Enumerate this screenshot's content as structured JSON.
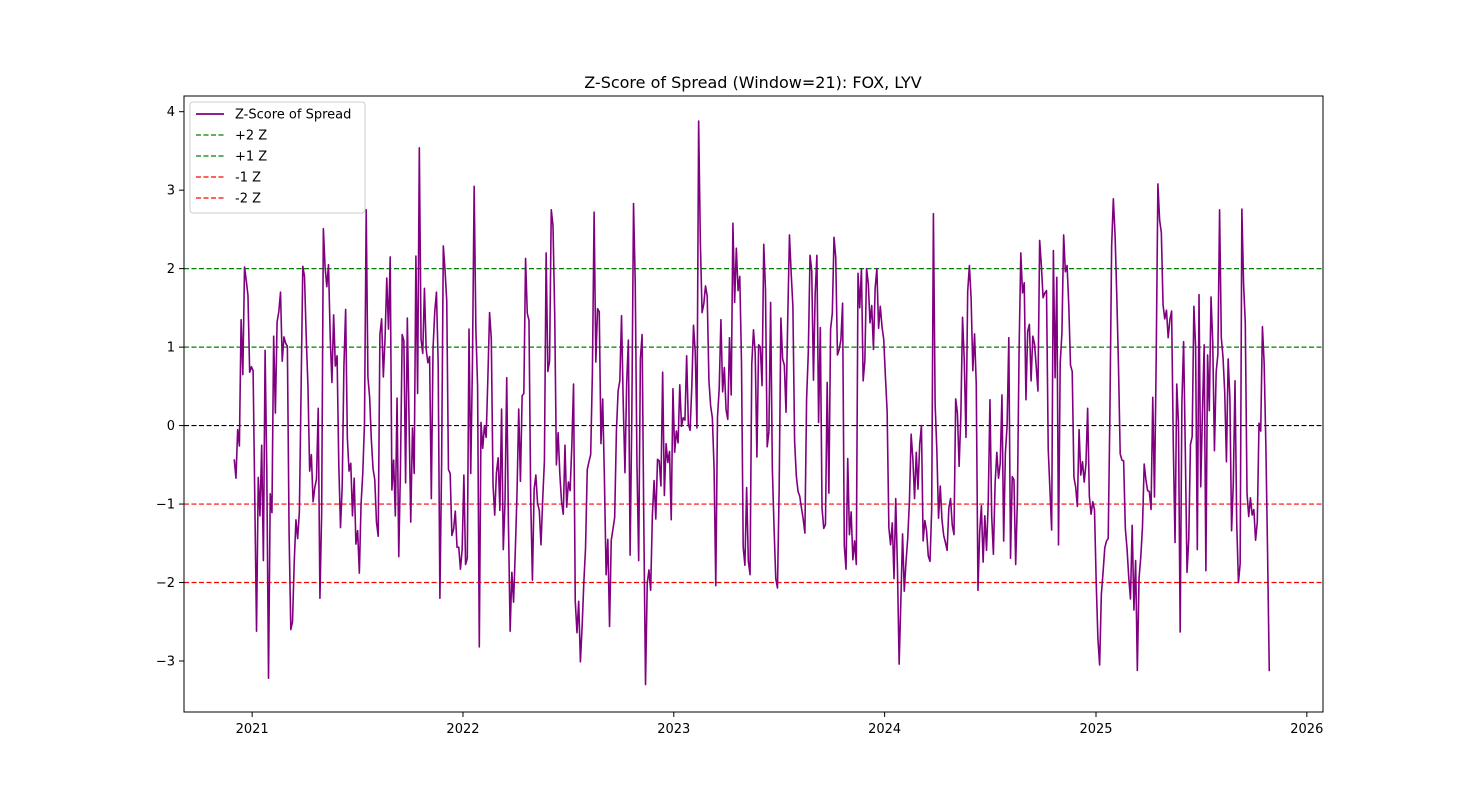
{
  "chart_data": {
    "type": "line",
    "title": "Z-Score of Spread (Window=21): FOX, LYV",
    "xlabel": "",
    "ylabel": "",
    "xlim": [
      "2020-09-05",
      "2026-01-29"
    ],
    "ylim": [
      -3.65,
      4.2
    ],
    "x_ticks": [
      {
        "date": "2021-01-01",
        "label": "2021"
      },
      {
        "date": "2022-01-01",
        "label": "2022"
      },
      {
        "date": "2023-01-01",
        "label": "2023"
      },
      {
        "date": "2024-01-01",
        "label": "2024"
      },
      {
        "date": "2025-01-01",
        "label": "2025"
      },
      {
        "date": "2026-01-01",
        "label": "2026"
      }
    ],
    "y_ticks": [
      {
        "value": 4,
        "label": "4"
      },
      {
        "value": 3,
        "label": "3"
      },
      {
        "value": 2,
        "label": "2"
      },
      {
        "value": 1,
        "label": "1"
      },
      {
        "value": 0,
        "label": "0"
      },
      {
        "value": -1,
        "label": "−1"
      },
      {
        "value": -2,
        "label": "−2"
      },
      {
        "value": -3,
        "label": "−3"
      }
    ],
    "grid": false,
    "legend_position": "top-left",
    "series": [
      {
        "name": "Z-Score of Spread",
        "color": "#800080",
        "style": "solid",
        "x_start": "2020-12-01",
        "x_end": "2025-10-28",
        "values": [
          -0.43,
          -0.67,
          -0.05,
          -0.26,
          1.35,
          0.65,
          2.02,
          1.85,
          1.66,
          0.68,
          0.75,
          0.7,
          -0.95,
          -2.62,
          -0.66,
          -1.15,
          -0.25,
          -1.72,
          0.96,
          -0.6,
          -3.22,
          -0.87,
          -1.11,
          1.14,
          0.16,
          1.32,
          1.45,
          1.7,
          0.82,
          1.13,
          1.05,
          1.01,
          -1.37,
          -2.6,
          -2.5,
          -1.74,
          -1.2,
          -1.44,
          -1.1,
          0.45,
          2.03,
          1.9,
          1.13,
          0.51,
          -0.58,
          -0.37,
          -0.97,
          -0.79,
          -0.68,
          0.22,
          -2.2,
          -1.12,
          2.51,
          2.02,
          1.77,
          2.05,
          1.13,
          0.55,
          1.41,
          0.76,
          0.89,
          -0.49,
          -1.3,
          -0.77,
          0.76,
          1.48,
          -0.16,
          -0.58,
          -0.48,
          -1.15,
          -0.67,
          -1.51,
          -1.34,
          -1.88,
          -1.0,
          -0.61,
          0.03,
          2.75,
          0.62,
          0.36,
          -0.18,
          -0.55,
          -0.69,
          -1.23,
          -1.41,
          1.16,
          1.36,
          0.62,
          1.11,
          1.88,
          1.23,
          2.15,
          -0.82,
          -0.44,
          -1.15,
          0.35,
          -1.67,
          -0.53,
          1.16,
          1.08,
          -0.73,
          1.37,
          0.07,
          -1.23,
          -0.03,
          -0.61,
          2.16,
          0.41,
          3.54,
          1.1,
          0.92,
          1.75,
          0.97,
          0.8,
          0.88,
          -0.93,
          0.98,
          1.45,
          1.7,
          0.8,
          -2.2,
          -0.5,
          2.29,
          1.98,
          1.59,
          -0.56,
          -0.61,
          -1.4,
          -1.32,
          -1.09,
          -1.55,
          -1.55,
          -1.83,
          -1.58,
          -0.63,
          -1.77,
          -1.69,
          1.23,
          -0.61,
          0.8,
          3.05,
          1.23,
          0.5,
          -2.82,
          0.04,
          -0.29,
          0.0,
          -0.15,
          0.61,
          1.44,
          1.11,
          -0.75,
          -1.14,
          -0.6,
          -0.41,
          -1.08,
          0.21,
          -1.58,
          -0.98,
          0.61,
          -1.24,
          -2.62,
          -1.87,
          -2.25,
          -1.6,
          -0.87,
          0.21,
          -0.71,
          0.38,
          0.41,
          2.13,
          1.43,
          1.34,
          -0.94,
          -1.97,
          -0.81,
          -0.63,
          -0.99,
          -1.08,
          -1.52,
          -0.94,
          -0.45,
          2.2,
          0.69,
          0.82,
          2.75,
          2.55,
          1.43,
          -0.5,
          -0.09,
          -0.62,
          -0.97,
          -1.13,
          -0.25,
          -1.04,
          -0.72,
          -0.83,
          -0.25,
          0.53,
          -2.24,
          -2.64,
          -2.24,
          -3.01,
          -2.56,
          -2.0,
          -1.56,
          -0.56,
          -0.46,
          -0.37,
          0.68,
          2.72,
          0.81,
          1.49,
          1.45,
          -0.23,
          0.34,
          -0.66,
          -1.9,
          -1.45,
          -2.56,
          -1.46,
          -1.32,
          -1.17,
          -0.08,
          0.44,
          0.57,
          1.4,
          0.28,
          -0.6,
          0.54,
          1.09,
          -1.65,
          0.11,
          2.83,
          1.81,
          -0.48,
          -1.72,
          0.85,
          1.16,
          -1.25,
          -3.3,
          -2.01,
          -1.84,
          -2.1,
          -1.14,
          -0.7,
          -1.19,
          -0.43,
          -0.45,
          -0.77,
          0.68,
          -0.89,
          -0.23,
          -0.47,
          -0.33,
          -1.2,
          0.47,
          -0.34,
          -0.07,
          -0.22,
          0.52,
          -0.01,
          0.1,
          0.07,
          0.89,
          0.02,
          -0.06,
          0.49,
          1.28,
          0.94,
          -0.03,
          3.88,
          2.33,
          1.44,
          1.55,
          1.78,
          1.65,
          0.57,
          0.25,
          0.1,
          -0.54,
          -2.04,
          0.11,
          0.47,
          1.35,
          0.43,
          0.74,
          0.2,
          0.08,
          1.12,
          0.39,
          2.58,
          1.57,
          2.26,
          1.72,
          1.9,
          0.81,
          -1.55,
          -1.78,
          -0.79,
          -1.73,
          -1.9,
          0.78,
          1.22,
          0.93,
          -0.4,
          1.03,
          1.0,
          0.51,
          2.31,
          1.73,
          -0.27,
          -0.08,
          1.57,
          -0.54,
          -1.3,
          -1.95,
          -2.07,
          -0.78,
          1.37,
          0.85,
          0.77,
          0.17,
          1.37,
          2.43,
          1.94,
          1.52,
          -0.2,
          -0.64,
          -0.84,
          -0.9,
          -1.05,
          -1.19,
          -1.37,
          0.34,
          0.94,
          2.17,
          1.97,
          0.58,
          1.68,
          2.17,
          0.04,
          1.25,
          -1.05,
          -1.31,
          -1.26,
          0.55,
          -0.86,
          1.23,
          1.43,
          2.4,
          2.14,
          0.9,
          0.97,
          1.09,
          1.56,
          -1.53,
          -1.83,
          -0.42,
          -1.39,
          -1.1,
          -1.71,
          -1.47,
          -1.77,
          1.94,
          1.5,
          2.0,
          0.57,
          0.83,
          2.0,
          1.81,
          1.31,
          1.53,
          0.97,
          1.75,
          2.0,
          1.24,
          1.52,
          1.26,
          1.1,
          0.62,
          0.18,
          -1.3,
          -1.52,
          -1.24,
          -1.95,
          -0.93,
          -1.8,
          -3.04,
          -2.24,
          -1.38,
          -2.11,
          -1.74,
          -1.44,
          -0.97,
          -0.11,
          -0.42,
          -0.93,
          -0.34,
          -0.81,
          -0.24,
          0.0,
          -1.47,
          -1.21,
          -1.34,
          -1.66,
          -1.73,
          -1.07,
          2.7,
          0.27,
          -0.31,
          -1.18,
          -0.77,
          -1.2,
          -1.4,
          -1.49,
          -1.59,
          -1.05,
          -0.93,
          -1.27,
          -1.39,
          0.34,
          0.16,
          -0.52,
          0.12,
          1.38,
          0.83,
          -0.15,
          1.71,
          2.04,
          1.62,
          0.7,
          1.17,
          0.53,
          -2.1,
          -1.36,
          -1.02,
          -1.74,
          -1.15,
          -1.59,
          -0.97,
          0.33,
          -1.15,
          -1.64,
          -0.74,
          -0.34,
          -0.67,
          -0.48,
          0.39,
          -1.47,
          -0.35,
          0.0,
          1.12,
          -1.69,
          -0.65,
          -0.69,
          -1.77,
          -0.96,
          0.97,
          2.2,
          1.69,
          1.82,
          0.33,
          1.2,
          1.29,
          0.57,
          1.14,
          1.04,
          0.75,
          0.44,
          2.36,
          2.04,
          1.63,
          1.69,
          1.72,
          -0.3,
          -0.82,
          -1.33,
          2.23,
          0.61,
          1.89,
          -1.52,
          0.8,
          1.18,
          2.43,
          1.96,
          2.04,
          1.53,
          0.77,
          0.69,
          -0.66,
          -0.78,
          -1.03,
          -0.05,
          -0.63,
          -0.46,
          -0.72,
          -0.49,
          0.22,
          -0.9,
          -1.13,
          -0.97,
          -1.07,
          -2.0,
          -2.72,
          -3.05,
          -2.15,
          -1.87,
          -1.56,
          -1.47,
          -1.44,
          0.17,
          2.28,
          2.89,
          2.43,
          1.66,
          0.76,
          -0.36,
          -0.44,
          -0.45,
          -1.31,
          -1.57,
          -1.94,
          -2.21,
          -1.27,
          -2.35,
          -1.72,
          -3.12,
          -1.94,
          -1.68,
          -1.29,
          -0.49,
          -0.69,
          -0.83,
          -0.84,
          -1.07,
          0.36,
          -0.91,
          0.84,
          3.08,
          2.62,
          2.46,
          1.54,
          1.36,
          1.47,
          1.12,
          1.35,
          1.46,
          -0.26,
          -1.49,
          0.53,
          0.03,
          -2.63,
          0.29,
          1.07,
          -0.33,
          -1.87,
          -1.45,
          -0.24,
          -0.14,
          1.52,
          1.0,
          -1.58,
          1.67,
          -0.78,
          0.18,
          1.03,
          -1.85,
          0.9,
          0.19,
          1.64,
          1.06,
          -0.32,
          0.68,
          0.91,
          2.75,
          1.12,
          0.87,
          0.42,
          -0.46,
          0.85,
          0.36,
          -1.34,
          -0.73,
          0.57,
          -1.25,
          -2.0,
          -1.76,
          2.76,
          1.8,
          1.31,
          -0.86,
          -1.16,
          -0.92,
          -1.14,
          -1.07,
          -1.46,
          -1.23,
          0.03,
          -0.07,
          1.26,
          0.8,
          -0.25,
          -1.62,
          -3.13
        ]
      },
      {
        "name": "+2 Z",
        "color": "#008000",
        "style": "dashed",
        "value": 2
      },
      {
        "name": "+1 Z",
        "color": "#008000",
        "style": "dashed",
        "value": 1
      },
      {
        "name": "-1 Z",
        "color": "#ff0000",
        "style": "dashed",
        "value": -1
      },
      {
        "name": "-2 Z",
        "color": "#ff0000",
        "style": "dashed",
        "value": -2
      }
    ],
    "reference_line": {
      "value": 0,
      "color": "#000000",
      "style": "dashed"
    }
  }
}
